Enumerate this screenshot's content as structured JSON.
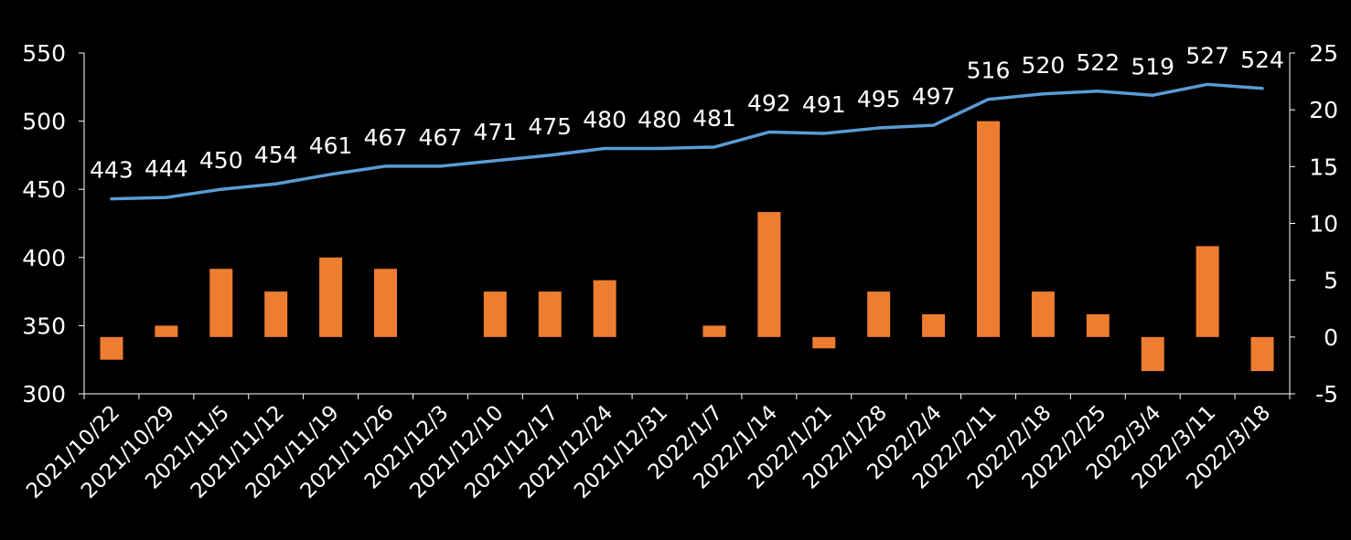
{
  "chart_data": {
    "type": "bar+line",
    "categories": [
      "2021/10/22",
      "2021/10/29",
      "2021/11/5",
      "2021/11/12",
      "2021/11/19",
      "2021/11/26",
      "2021/12/3",
      "2021/12/10",
      "2021/12/17",
      "2021/12/24",
      "2021/12/31",
      "2022/1/7",
      "2022/1/14",
      "2022/1/21",
      "2022/1/28",
      "2022/2/4",
      "2022/2/11",
      "2022/2/18",
      "2022/2/25",
      "2022/3/4",
      "2022/3/11",
      "2022/3/18"
    ],
    "series": [
      {
        "type": "line",
        "axis": "left",
        "color": "#5B9BD5",
        "values": [
          443,
          444,
          450,
          454,
          461,
          467,
          467,
          471,
          475,
          480,
          480,
          481,
          492,
          491,
          495,
          497,
          516,
          520,
          522,
          519,
          527,
          524
        ],
        "labels": [
          "443",
          "444",
          "450",
          "454",
          "461",
          "467",
          "467",
          "471",
          "475",
          "480",
          "480",
          "481",
          "492",
          "491",
          "495",
          "497",
          "516",
          "520",
          "522",
          "519",
          "527",
          "524"
        ]
      },
      {
        "type": "bar",
        "axis": "right",
        "color": "#ED7D31",
        "values": [
          -2,
          1,
          6,
          4,
          7,
          6,
          0,
          4,
          4,
          5,
          0,
          1,
          11,
          -1,
          4,
          2,
          19,
          4,
          2,
          -3,
          8,
          -3
        ]
      }
    ],
    "left_axis": {
      "min": 300,
      "max": 550,
      "ticks": [
        300,
        350,
        400,
        450,
        500,
        550
      ],
      "tick_labels": [
        "300",
        "350",
        "400",
        "450",
        "500",
        "550"
      ]
    },
    "right_axis": {
      "min": -5,
      "max": 25,
      "ticks": [
        -5,
        0,
        5,
        10,
        15,
        20,
        25
      ],
      "tick_labels": [
        "-5",
        "0",
        "5",
        "10",
        "15",
        "20",
        "25"
      ]
    },
    "background": "#000000",
    "grid": false,
    "legend": "none"
  }
}
